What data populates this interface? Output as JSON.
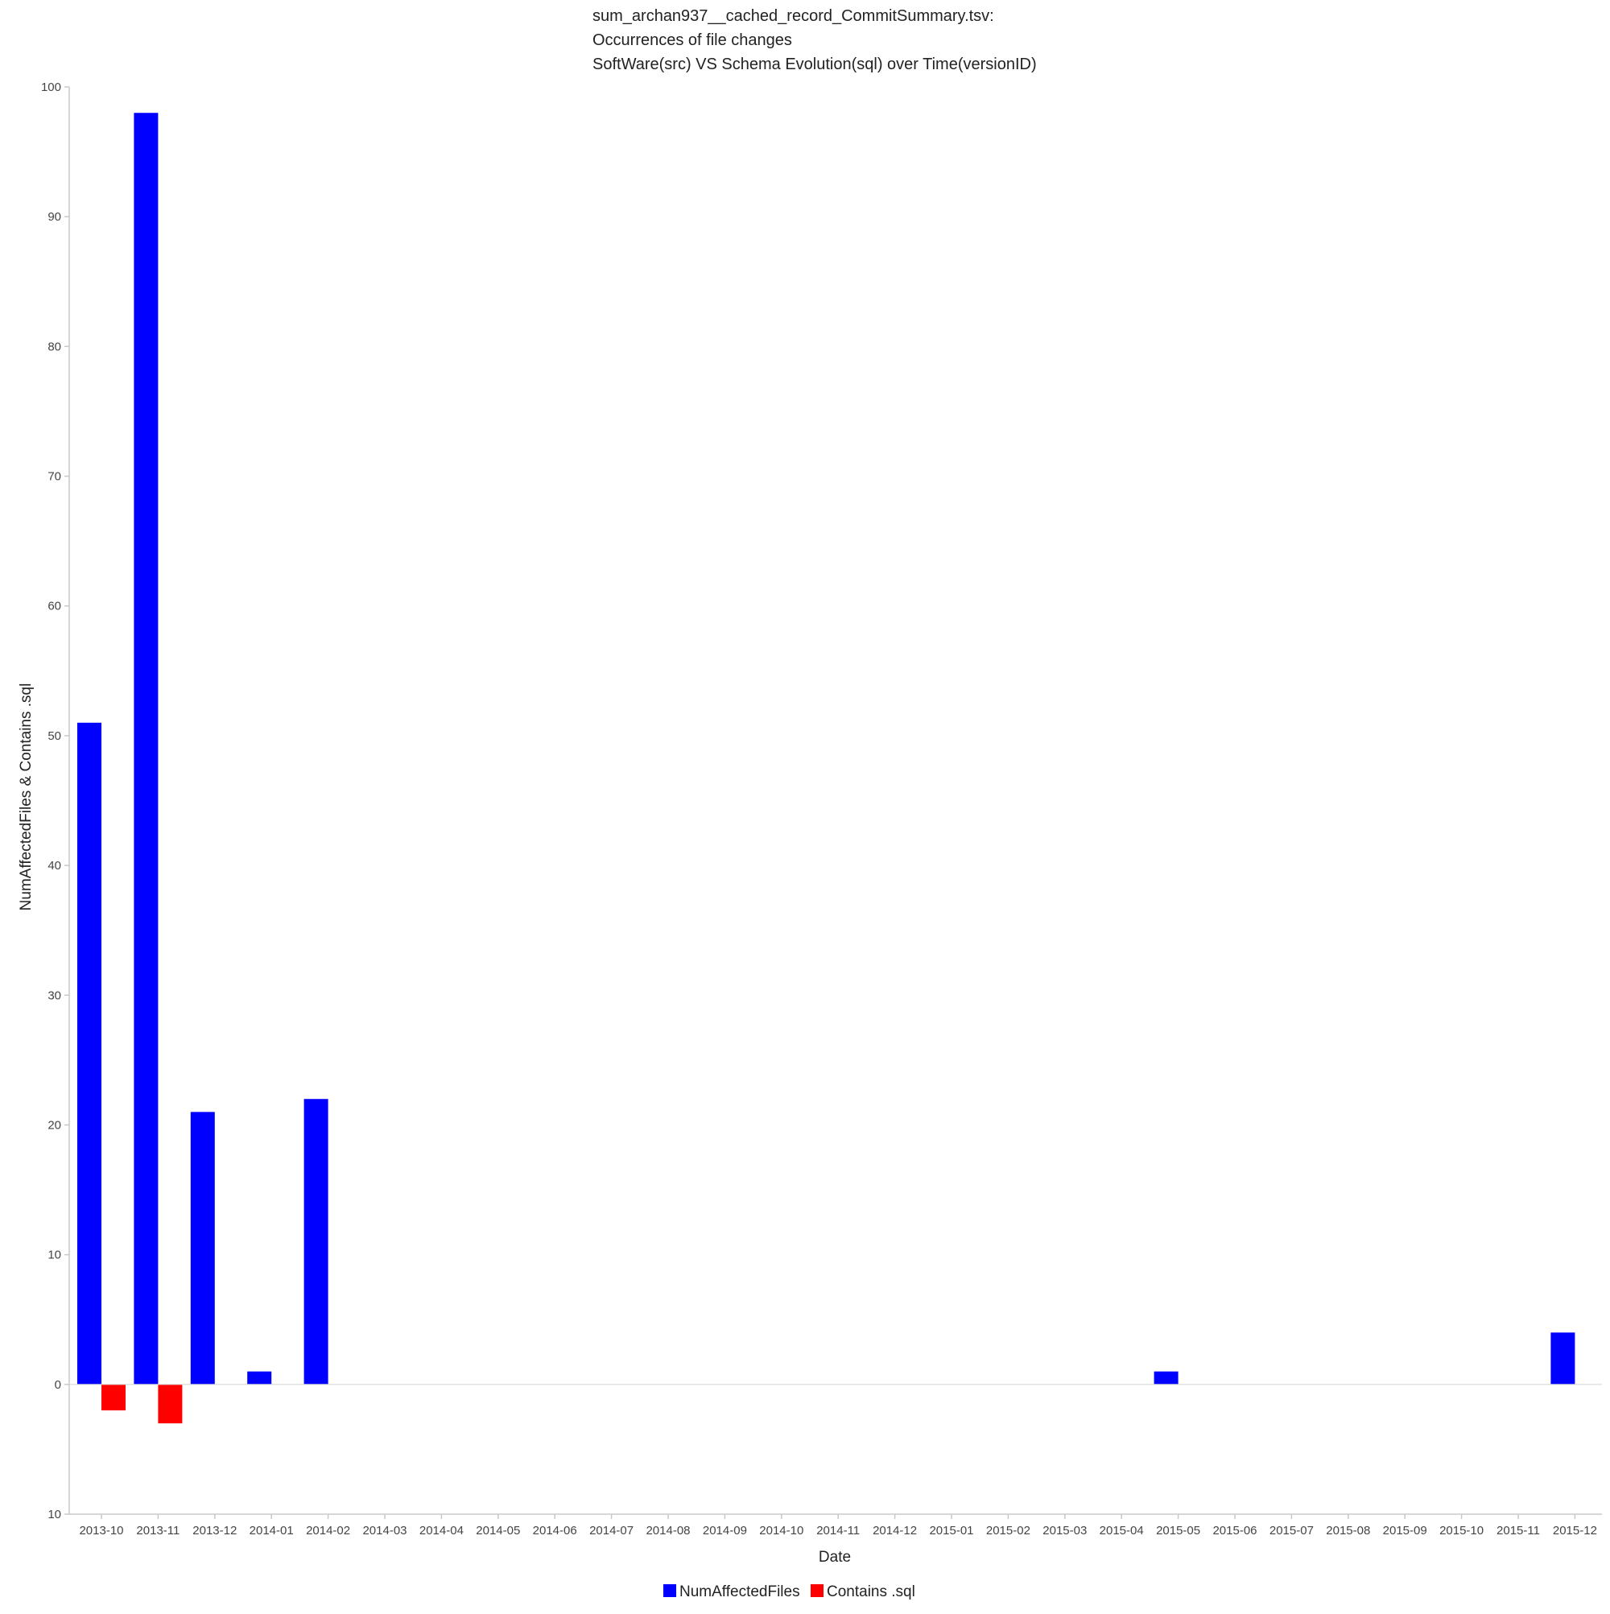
{
  "chart_data": {
    "type": "bar",
    "title_lines": [
      "sum_archan937__cached_record_CommitSummary.tsv:",
      "Occurrences of file changes",
      "SoftWare(src) VS Schema Evolution(sql) over Time(versionID)"
    ],
    "xlabel": "Date",
    "ylabel": "NumAffectedFiles & Contains .sql",
    "ylim": [
      -10,
      100
    ],
    "yticks": [
      100,
      90,
      80,
      70,
      60,
      50,
      40,
      30,
      20,
      10,
      0,
      -10
    ],
    "ytick_labels": [
      "100",
      "90",
      "80",
      "70",
      "60",
      "50",
      "40",
      "30",
      "20",
      "10",
      "0",
      "10"
    ],
    "categories": [
      "2013-10",
      "2013-11",
      "2013-12",
      "2014-01",
      "2014-02",
      "2014-03",
      "2014-04",
      "2014-05",
      "2014-06",
      "2014-07",
      "2014-08",
      "2014-09",
      "2014-10",
      "2014-11",
      "2014-12",
      "2015-01",
      "2015-02",
      "2015-03",
      "2015-04",
      "2015-05",
      "2015-06",
      "2015-07",
      "2015-08",
      "2015-09",
      "2015-10",
      "2015-11",
      "2015-12"
    ],
    "series": [
      {
        "name": "NumAffectedFiles",
        "color": "#0000ff",
        "values": [
          51,
          98,
          21,
          1,
          22,
          0,
          0,
          0,
          0,
          0,
          0,
          0,
          0,
          0,
          0,
          0,
          0,
          0,
          0,
          1,
          0,
          0,
          0,
          0,
          0,
          0,
          4
        ]
      },
      {
        "name": "Contains .sql",
        "color": "#ff0000",
        "values": [
          -2,
          -3,
          0,
          0,
          0,
          0,
          0,
          0,
          0,
          0,
          0,
          0,
          0,
          0,
          0,
          0,
          0,
          0,
          0,
          0,
          0,
          0,
          0,
          0,
          0,
          0,
          0
        ]
      }
    ],
    "legend_position": "bottom-center",
    "grid": false
  }
}
